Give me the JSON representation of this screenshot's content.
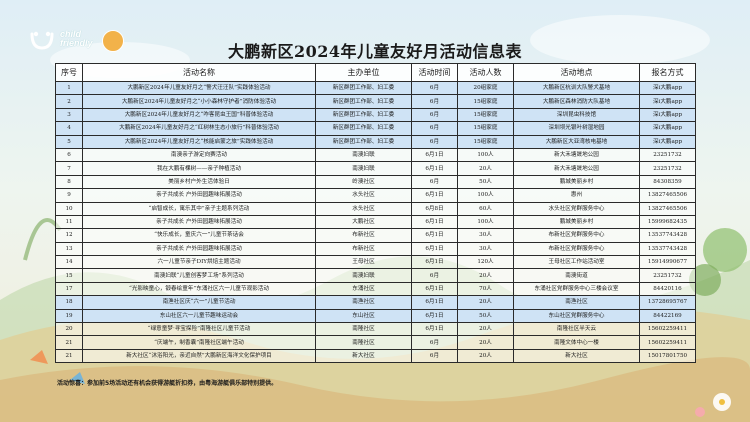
{
  "header": {
    "logo_line1": "child",
    "logo_line2": "friendly",
    "title": "大鹏新区2024年儿童友好月活动信息表"
  },
  "table": {
    "columns": [
      "序号",
      "活动名称",
      "主办单位",
      "活动时间",
      "活动人数",
      "活动地点",
      "报名方式"
    ],
    "rows": [
      {
        "no": "1",
        "name": "大鹏新区2024年儿童友好月之“警犬汪汪队”实践体验活动",
        "org": "新区群团工作部、妇工委",
        "time": "6月",
        "people": "20组家庭",
        "place": "大鹏新区杭训大队警犬基地",
        "signup": "深i大鹏app",
        "hl": true
      },
      {
        "no": "2",
        "name": "大鹏新区2024年儿童友好月之“小小森林守护者”消防体验活动",
        "org": "新区群团工作部、妇工委",
        "time": "6月",
        "people": "15组家庭",
        "place": "大鹏新区森林消防大队基地",
        "signup": "深i大鹏app",
        "hl": true
      },
      {
        "no": "3",
        "name": "大鹏新区2024年儿童友好月之“咋客昆虫王国”科普体验活动",
        "org": "新区群团工作部、妇工委",
        "time": "6月",
        "people": "15组家庭",
        "place": "深圳昆虫科技馆",
        "signup": "深i大鹏app",
        "hl": true
      },
      {
        "no": "4",
        "name": "大鹏新区2024年儿童友好月之“红树林生态小旅行”科普体验活动",
        "org": "新区群团工作部、妇工委",
        "time": "6月",
        "people": "15组家庭",
        "place": "深圳坝光银叶树湿地园",
        "signup": "深i大鹏app",
        "hl": true
      },
      {
        "no": "5",
        "name": "大鹏新区2024年儿童友好月之“核能启蒙之旅”实践体验活动",
        "org": "新区群团工作部、妇工委",
        "time": "6月",
        "people": "15组家庭",
        "place": "大鹏新区大亚湾核电基地",
        "signup": "深i大鹏app",
        "hl": true
      },
      {
        "no": "6",
        "name": "南澳亲子游定向赛活动",
        "org": "南澳妇联",
        "time": "6月1日",
        "people": "100人",
        "place": "新大禾塘晟地公园",
        "signup": "23251732",
        "hl": false
      },
      {
        "no": "7",
        "name": "我在大鹏有棵树——亲子种植活动",
        "org": "南澳妇联",
        "time": "6月1日",
        "people": "20人",
        "place": "新大禾塘晟地公园",
        "signup": "23251732",
        "hl": false
      },
      {
        "no": "8",
        "name": "美丽乡村户外生活体验日",
        "org": "岭澳社区",
        "time": "6月",
        "people": "50人",
        "place": "鹏城美丽乡村",
        "signup": "84308359",
        "hl": false
      },
      {
        "no": "9",
        "name": "亲子共成长 户外田园趣味拓展活动",
        "org": "水头社区",
        "time": "6月1日",
        "people": "100人",
        "place": "惠州",
        "signup": "13827465506",
        "hl": false
      },
      {
        "no": "10",
        "name": "“启智成长，寓乐其中”亲子主题系列活动",
        "org": "水头社区",
        "time": "6月8日",
        "people": "60人",
        "place": "水头社区党群服务中心",
        "signup": "13827465506",
        "hl": false
      },
      {
        "no": "11",
        "name": "亲子共成长 户外田园趣味拓展活动",
        "org": "大鹏社区",
        "time": "6月1日",
        "people": "100人",
        "place": "鹏城美丽乡村",
        "signup": "15999682435",
        "hl": false
      },
      {
        "no": "12",
        "name": "“快乐成长，童庆六一”儿童节茶话会",
        "org": "布新社区",
        "time": "6月1日",
        "people": "30人",
        "place": "布新社区党群服务中心",
        "signup": "13537743428",
        "hl": false
      },
      {
        "no": "13",
        "name": "亲子共成长 户外田园趣味拓展活动",
        "org": "布新社区",
        "time": "6月1日",
        "people": "30人",
        "place": "布新社区党群服务中心",
        "signup": "13537743428",
        "hl": false
      },
      {
        "no": "14",
        "name": "六一儿童节亲子DIY烘焙主题活动",
        "org": "王母社区",
        "time": "6月1日",
        "people": "120人",
        "place": "王母社区工作站活动室",
        "signup": "15914990677",
        "hl": false
      },
      {
        "no": "15",
        "name": "南澳妇联“儿童创客梦工场”系列活动",
        "org": "南澳妇联",
        "time": "6月",
        "people": "20人",
        "place": "南澳街道",
        "signup": "23251732",
        "hl": false
      },
      {
        "no": "17",
        "name": "“光影映童心，锻春绘童年”东涌社区六一儿童节观影活动",
        "org": "东涌社区",
        "time": "6月1日",
        "people": "70人",
        "place": "东涌社区党群服务中心三楼会议室",
        "signup": "84420116",
        "hl": false
      },
      {
        "no": "18",
        "name": "南渔社区庆“六一”儿童节活动",
        "org": "南渔社区",
        "time": "6月1日",
        "people": "20人",
        "place": "南渔社区",
        "signup": "13728695767",
        "hl": true
      },
      {
        "no": "19",
        "name": "东山社区六一儿童节趣味运动会",
        "org": "东山社区",
        "time": "6月1日",
        "people": "50人",
        "place": "东山社区党群服务中心",
        "signup": "84422169",
        "hl": true
      },
      {
        "no": "20",
        "name": "“绿意童梦·寻宝探险”南隆社区儿童节活动",
        "org": "南隆社区",
        "time": "6月1日",
        "people": "20人",
        "place": "南隆社区半天云",
        "signup": "15602259411",
        "hl": false
      },
      {
        "no": "21",
        "name": "“庆端午，制香囊”南隆社区端午活动",
        "org": "南隆社区",
        "time": "6月",
        "people": "20人",
        "place": "南隆文体中心一楼",
        "signup": "15602259411",
        "hl": false
      },
      {
        "no": "21",
        "name": "新大社区“沐浴阳光，亲近自然”大鹏新区海洋文化保护项目",
        "org": "新大社区",
        "time": "6月",
        "people": "20人",
        "place": "新大社区",
        "signup": "15017801750",
        "hl": false
      }
    ]
  },
  "footer": {
    "note": "活动惊喜：参加前5场活动还有机会获得游艇折扣券，由粤海游艇俱乐部特别提供。"
  },
  "colors": {
    "highlight": "#cfe3f5",
    "border": "#2a2a2a"
  }
}
